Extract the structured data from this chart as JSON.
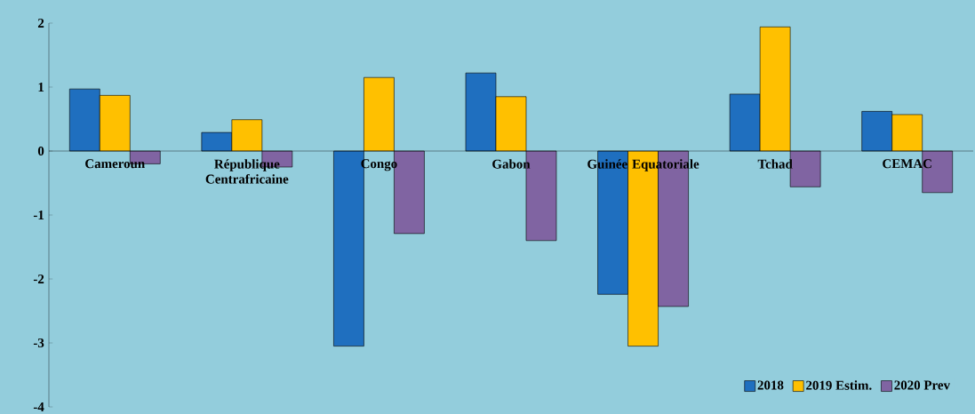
{
  "chart_data": {
    "type": "bar",
    "categories": [
      "Cameroun",
      "République Centrafricaine",
      "Congo",
      "Gabon",
      "Guinée Equatoriale",
      "Tchad",
      "CEMAC"
    ],
    "series": [
      {
        "name": "2018",
        "color": "#1f6fbf",
        "values": [
          0.97,
          0.29,
          -3.05,
          1.22,
          -2.24,
          0.89,
          0.62
        ]
      },
      {
        "name": "2019 Estim.",
        "color": "#ffc000",
        "values": [
          0.87,
          0.49,
          1.15,
          0.85,
          -3.05,
          1.94,
          0.57
        ]
      },
      {
        "name": "2020 Prev",
        "color": "#8064a2",
        "values": [
          -0.2,
          -0.25,
          -1.29,
          -1.4,
          -2.43,
          -0.56,
          -0.65
        ]
      }
    ],
    "ylim": [
      -4,
      2
    ],
    "yticks": [
      -4,
      -3,
      -2,
      -1,
      0,
      1,
      2
    ],
    "legend": "bottom right"
  }
}
